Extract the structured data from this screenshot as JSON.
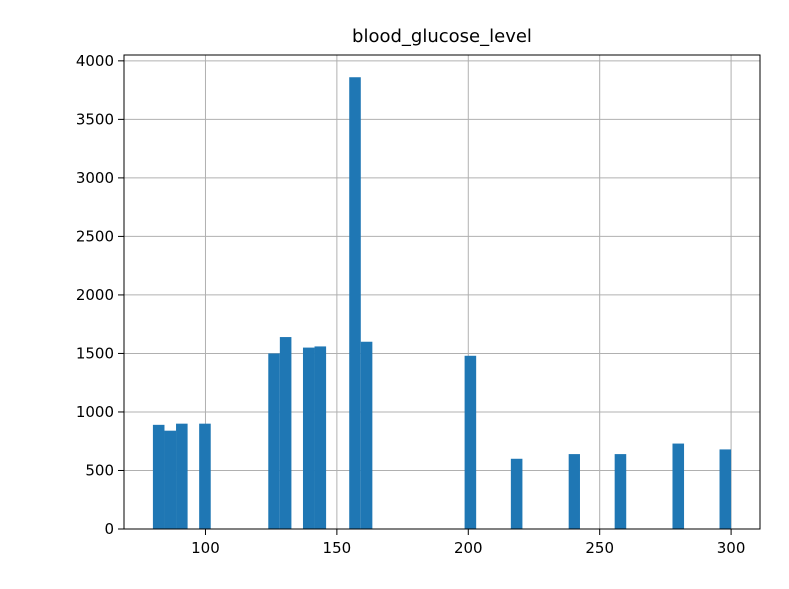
{
  "chart_data": {
    "type": "bar",
    "title": "blood_glucose_level",
    "xlabel": "",
    "ylabel": "",
    "xlim": [
      69,
      311
    ],
    "ylim": [
      0,
      4050
    ],
    "grid": true,
    "bar_color": "#1f77b4",
    "xticks": [
      100,
      150,
      200,
      250,
      300
    ],
    "yticks": [
      0,
      500,
      1000,
      1500,
      2000,
      2500,
      3000,
      3500,
      4000
    ],
    "bins": [
      {
        "x0": 80.0,
        "x1": 84.4,
        "value": 890
      },
      {
        "x0": 84.4,
        "x1": 88.8,
        "value": 840
      },
      {
        "x0": 88.8,
        "x1": 93.2,
        "value": 900
      },
      {
        "x0": 97.6,
        "x1": 102.0,
        "value": 900
      },
      {
        "x0": 123.9,
        "x1": 128.3,
        "value": 1500
      },
      {
        "x0": 128.3,
        "x1": 132.7,
        "value": 1640
      },
      {
        "x0": 137.1,
        "x1": 141.5,
        "value": 1550
      },
      {
        "x0": 141.5,
        "x1": 145.9,
        "value": 1560
      },
      {
        "x0": 154.7,
        "x1": 159.1,
        "value": 3860
      },
      {
        "x0": 159.1,
        "x1": 163.5,
        "value": 1600
      },
      {
        "x0": 198.6,
        "x1": 203.0,
        "value": 1480
      },
      {
        "x0": 216.2,
        "x1": 220.6,
        "value": 600
      },
      {
        "x0": 238.2,
        "x1": 242.5,
        "value": 640
      },
      {
        "x0": 255.7,
        "x1": 260.1,
        "value": 640
      },
      {
        "x0": 277.7,
        "x1": 282.1,
        "value": 730
      },
      {
        "x0": 295.6,
        "x1": 300.0,
        "value": 680
      }
    ]
  }
}
